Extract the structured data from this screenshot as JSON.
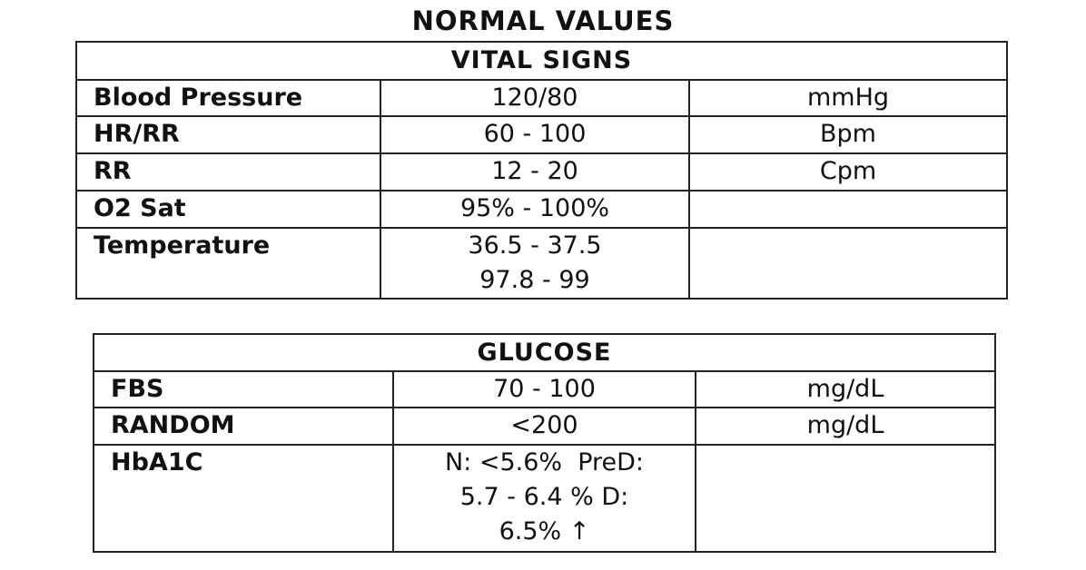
{
  "title": "NORMAL VALUES",
  "tables": [
    {
      "header": "VITAL SIGNS",
      "rows": [
        [
          "Blood Pressure",
          "120/80",
          "mmHg"
        ],
        [
          "HR/RR",
          "60 - 100",
          "Bpm"
        ],
        [
          "RR",
          "12 - 20",
          "Cpm"
        ],
        [
          "O2 Sat",
          "95% - 100%"
        ],
        [
          "Temperature",
          [
            "36.5 - 37.5",
            "97.8 - 99"
          ]
        ]
      ]
    },
    {
      "header": "GLUCOSE",
      "rows": [
        [
          "FBS",
          "70 - 100",
          "mg/dL"
        ],
        [
          "RANDOM",
          "<200",
          "mg/dL"
        ],
        [
          "HbA1C",
          [
            "N: <5.6%  PreD:",
            "5.7 - 6.4 % D:",
            "6.5% ↑"
          ]
        ]
      ]
    }
  ]
}
